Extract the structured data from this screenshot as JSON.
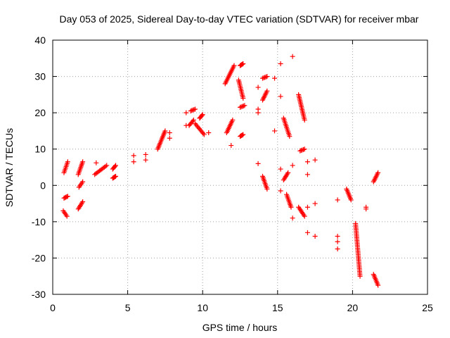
{
  "chart_data": {
    "type": "scatter",
    "title": "Day 053 of 2025, Sidereal Day-to-day VTEC variation (SDTVAR) for receiver mbar",
    "xlabel": "GPS time / hours",
    "ylabel": "SDTVAR / TECUs",
    "xlim": [
      0,
      25
    ],
    "ylim": [
      -30,
      40
    ],
    "xticks": [
      "0",
      "5",
      "10",
      "15",
      "20",
      "25"
    ],
    "yticks": [
      "-30",
      "-20",
      "-10",
      "0",
      "10",
      "20",
      "30",
      "40"
    ],
    "grid": true,
    "marker": "+",
    "color": "#ff0000",
    "series": [
      {
        "name": "SDTVAR",
        "segments": [
          {
            "x": [
              0.75,
              1.0
            ],
            "y": [
              3.5,
              6.5
            ]
          },
          {
            "x": [
              0.75,
              1.0
            ],
            "y": [
              -3.5,
              -3.0
            ]
          },
          {
            "x": [
              0.7,
              0.95
            ],
            "y": [
              -7.0,
              -8.5
            ]
          },
          {
            "x": [
              1.7,
              2.0
            ],
            "y": [
              3.0,
              6.5
            ]
          },
          {
            "x": [
              1.75,
              2.0
            ],
            "y": [
              -0.5,
              1.0
            ]
          },
          {
            "x": [
              1.7,
              2.0
            ],
            "y": [
              -6.5,
              -4.5
            ]
          },
          {
            "x": [
              2.8,
              3.6
            ],
            "y": [
              3.0,
              5.5
            ]
          },
          {
            "x": [
              4.0,
              4.2
            ],
            "y": [
              4.5,
              5.5
            ]
          },
          {
            "x": [
              4.0,
              4.2
            ],
            "y": [
              2.0,
              2.5
            ]
          },
          {
            "x": [
              7.0,
              7.5
            ],
            "y": [
              10.0,
              15.0
            ]
          },
          {
            "x": [
              9.1,
              9.4
            ],
            "y": [
              16.5,
              18.0
            ]
          },
          {
            "x": [
              9.2,
              9.5
            ],
            "y": [
              20.5,
              21.0
            ]
          },
          {
            "x": [
              9.5,
              10.1
            ],
            "y": [
              17.0,
              14.0
            ]
          },
          {
            "x": [
              9.8,
              10.0
            ],
            "y": [
              18.5,
              19.5
            ]
          },
          {
            "x": [
              11.6,
              12.0
            ],
            "y": [
              14.5,
              18.0
            ]
          },
          {
            "x": [
              11.5,
              12.1
            ],
            "y": [
              28.0,
              33.0
            ]
          },
          {
            "x": [
              12.4,
              12.7
            ],
            "y": [
              29.0,
              24.0
            ]
          },
          {
            "x": [
              12.5,
              12.7
            ],
            "y": [
              33.0,
              33.5
            ]
          },
          {
            "x": [
              12.5,
              12.8
            ],
            "y": [
              21.5,
              22.0
            ]
          },
          {
            "x": [
              12.5,
              12.7
            ],
            "y": [
              13.5,
              14.0
            ]
          },
          {
            "x": [
              14.0,
              14.3
            ],
            "y": [
              23.5,
              26.0
            ]
          },
          {
            "x": [
              14.0,
              14.3
            ],
            "y": [
              29.5,
              30.0
            ]
          },
          {
            "x": [
              14.0,
              14.3
            ],
            "y": [
              2.5,
              -1.0
            ]
          },
          {
            "x": [
              15.4,
              15.8
            ],
            "y": [
              18.5,
              13.5
            ]
          },
          {
            "x": [
              15.4,
              15.7
            ],
            "y": [
              1.5,
              3.5
            ]
          },
          {
            "x": [
              15.6,
              15.9
            ],
            "y": [
              -2.5,
              -6.0
            ]
          },
          {
            "x": [
              16.4,
              16.8
            ],
            "y": [
              25.0,
              18.0
            ]
          },
          {
            "x": [
              16.5,
              16.8
            ],
            "y": [
              9.5,
              10.0
            ]
          },
          {
            "x": [
              16.4,
              16.8
            ],
            "y": [
              -6.0,
              -8.5
            ]
          },
          {
            "x": [
              19.6,
              19.9
            ],
            "y": [
              -1.0,
              -4.0
            ]
          },
          {
            "x": [
              20.2,
              20.5
            ],
            "y": [
              -10.5,
              -25.0
            ]
          },
          {
            "x": [
              21.4,
              21.7
            ],
            "y": [
              1.0,
              3.5
            ]
          },
          {
            "x": [
              21.4,
              21.7
            ],
            "y": [
              -24.5,
              -27.5
            ]
          }
        ],
        "isolated_points": [
          {
            "x": 2.9,
            "y": 6.2
          },
          {
            "x": 5.4,
            "y": 8.2
          },
          {
            "x": 5.4,
            "y": 6.5
          },
          {
            "x": 6.2,
            "y": 8.5
          },
          {
            "x": 6.2,
            "y": 7.0
          },
          {
            "x": 7.8,
            "y": 14.5
          },
          {
            "x": 7.8,
            "y": 13.0
          },
          {
            "x": 8.9,
            "y": 16.5
          },
          {
            "x": 8.9,
            "y": 20.0
          },
          {
            "x": 10.4,
            "y": 14.5
          },
          {
            "x": 11.9,
            "y": 11.0
          },
          {
            "x": 13.7,
            "y": 27.0
          },
          {
            "x": 13.7,
            "y": 21.0
          },
          {
            "x": 13.7,
            "y": 20.0
          },
          {
            "x": 13.7,
            "y": 6.0
          },
          {
            "x": 14.8,
            "y": 29.5
          },
          {
            "x": 14.8,
            "y": 15.0
          },
          {
            "x": 15.2,
            "y": 33.5
          },
          {
            "x": 15.2,
            "y": 24.5
          },
          {
            "x": 15.2,
            "y": 4.5
          },
          {
            "x": 15.2,
            "y": -1.5
          },
          {
            "x": 16.0,
            "y": 35.5
          },
          {
            "x": 16.0,
            "y": 5.5
          },
          {
            "x": 16.0,
            "y": -9.0
          },
          {
            "x": 17.0,
            "y": 6.5
          },
          {
            "x": 17.0,
            "y": 3.0
          },
          {
            "x": 17.0,
            "y": -6.0
          },
          {
            "x": 17.0,
            "y": -13.0
          },
          {
            "x": 17.5,
            "y": 7.0
          },
          {
            "x": 17.5,
            "y": -5.0
          },
          {
            "x": 17.5,
            "y": -14.0
          },
          {
            "x": 19.0,
            "y": -4.0
          },
          {
            "x": 19.0,
            "y": -14.0
          },
          {
            "x": 19.0,
            "y": -15.5
          },
          {
            "x": 19.0,
            "y": -17.5
          },
          {
            "x": 20.9,
            "y": -6.0
          },
          {
            "x": 20.9,
            "y": -6.5
          }
        ]
      }
    ]
  }
}
